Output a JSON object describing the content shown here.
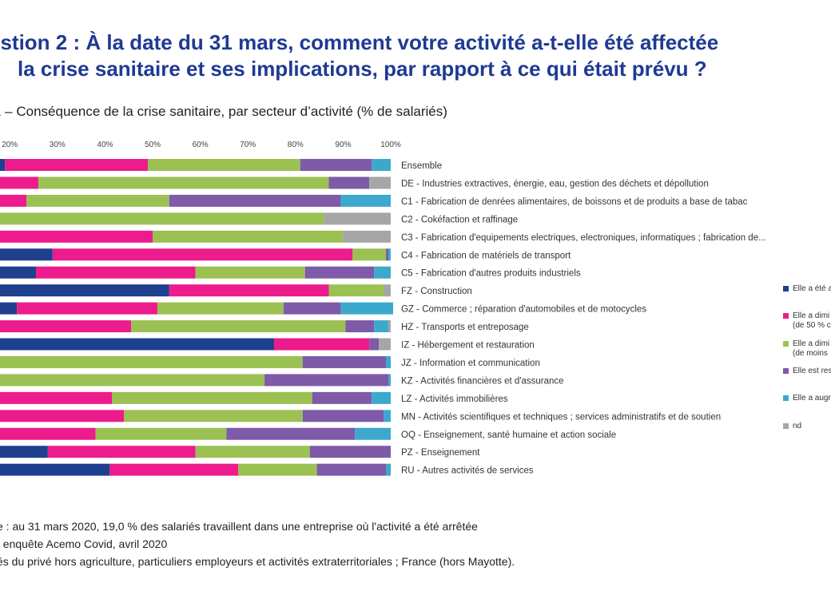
{
  "title_line1": "estion 2 : À la date du 31 mars, comment votre activité a-t-elle été affectée",
  "title_line2": "la crise sanitaire et ses implications, par rapport à ce qui était prévu ?",
  "subtitle": "1 – Conséquence de la crise sanitaire, par secteur d’activité (% de salariés)",
  "notes": [
    "e : au 31 mars 2020, 19,0 % des salariés travaillent dans une entreprise où l'activité a été arrêtée",
    ", enquête Acemo Covid, avril 2020",
    "és du privé hors agriculture, particuliers employeurs et activités extraterritoriales ; France (hors Mayotte)."
  ],
  "legend": [
    {
      "lines": [
        "Elle a été a"
      ]
    },
    {
      "lines": [
        "Elle a dimi",
        "(de 50 % c"
      ]
    },
    {
      "lines": [
        "Elle a dimi",
        "(de moins"
      ]
    },
    {
      "lines": [
        "Elle est res"
      ]
    },
    {
      "lines": [
        "Elle a augr"
      ]
    },
    {
      "lines": [
        "nd"
      ]
    }
  ],
  "chart_data": {
    "type": "bar",
    "orientation": "horizontal",
    "stacked": true,
    "x_ticks": [
      "20%",
      "30%",
      "40%",
      "50%",
      "60%",
      "70%",
      "80%",
      "90%",
      "100%"
    ],
    "xlim": [
      0,
      100
    ],
    "colors": [
      "#1f3f8f",
      "#ec1c8c",
      "#9bc153",
      "#7e5aa8",
      "#3ca9cc",
      "#a6a6a6"
    ],
    "categories": [
      "Ensemble",
      "DE - Industries extractives,  énergie, eau, gestion des déchets et dépollution",
      "C1 - Fabrication de denrées alimentaires, de boissons et  de produits a base de tabac",
      "C2 - Cokéfaction et raffinage",
      "C3 - Fabrication d'equipements electriques, electroniques, informatiques ; fabrication de...",
      "C4 - Fabrication de matériels de transport",
      "C5 - Fabrication d'autres produits industriels",
      "FZ - Construction",
      "GZ - Commerce ; réparation d'automobiles et de motocycles",
      "HZ - Transports et entreposage",
      "IZ - Hébergement et restauration",
      "JZ - Information et communication",
      "KZ - Activités financières et d'assurance",
      "LZ - Activités immobilières",
      "MN - Activités scientifiques et techniques ; services administratifs et de soutien",
      "OQ - Enseignement, santé humaine et action sociale",
      "PZ - Enseignement",
      "RU - Autres activités de services"
    ],
    "series": [
      {
        "values": [
          19.0,
          9.0,
          5.0,
          0.0,
          11.0,
          29.0,
          25.5,
          53.5,
          21.5,
          6.0,
          75.5,
          1.0,
          1.0,
          10.0,
          6.0,
          8.0,
          28.0,
          41.0
        ]
      },
      {
        "values": [
          30.0,
          17.0,
          18.5,
          0.0,
          39.0,
          63.0,
          33.5,
          33.5,
          29.5,
          39.5,
          20.0,
          6.0,
          8.0,
          31.5,
          38.0,
          30.0,
          31.0,
          27.0
        ]
      },
      {
        "values": [
          32.0,
          61.0,
          30.0,
          86.0,
          40.0,
          7.0,
          23.0,
          11.5,
          26.5,
          45.0,
          0.0,
          74.5,
          64.5,
          42.0,
          37.5,
          27.5,
          24.0,
          16.5
        ]
      },
      {
        "values": [
          15.0,
          8.5,
          36.0,
          0.0,
          0.0,
          0.5,
          14.5,
          0.0,
          12.0,
          6.0,
          2.0,
          17.5,
          26.0,
          12.5,
          17.0,
          27.0,
          17.0,
          14.5
        ]
      },
      {
        "values": [
          4.0,
          0.0,
          10.5,
          0.0,
          0.0,
          0.5,
          3.5,
          0.0,
          11.0,
          3.0,
          0.0,
          1.0,
          0.5,
          4.0,
          1.5,
          7.5,
          0.0,
          1.0
        ]
      },
      {
        "values": [
          0.0,
          4.5,
          0.0,
          14.0,
          10.0,
          0.0,
          0.0,
          1.5,
          0.0,
          0.5,
          2.5,
          0.0,
          0.0,
          0.0,
          0.0,
          0.0,
          0.0,
          0.0
        ]
      }
    ]
  }
}
